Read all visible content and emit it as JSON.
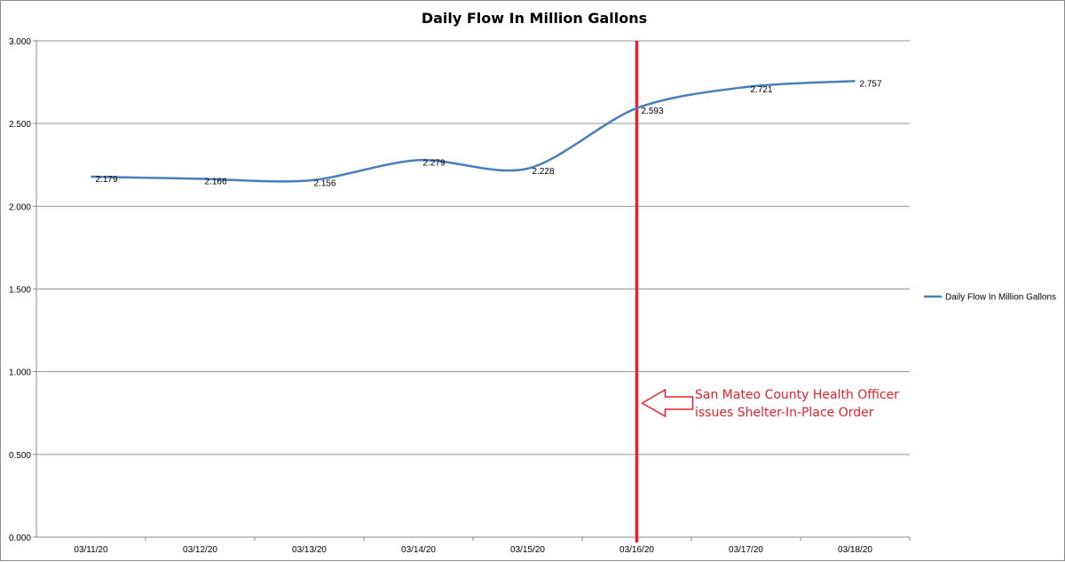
{
  "chart_data": {
    "type": "line",
    "title": "Daily Flow In Million Gallons",
    "xlabel": "",
    "ylabel": "",
    "categories": [
      "03/11/20",
      "03/12/20",
      "03/13/20",
      "03/14/20",
      "03/15/20",
      "03/16/20",
      "03/17/20",
      "03/18/20"
    ],
    "series": [
      {
        "name": "Daily Flow In Million Gallons",
        "values": [
          2.179,
          2.166,
          2.156,
          2.279,
          2.228,
          2.593,
          2.721,
          2.757
        ],
        "data_labels": [
          "2.179",
          "2.166",
          "2.156",
          "2.279",
          "2.228",
          "2.593",
          "2.721",
          "2.757"
        ],
        "color": "#4a7ebb"
      }
    ],
    "ylim": [
      0,
      3
    ],
    "y_ticks": [
      "0.000",
      "0.500",
      "1.000",
      "1.500",
      "2.000",
      "2.500",
      "3.000"
    ],
    "grid": true,
    "legend_position": "right",
    "annotation": {
      "marker_category": "03/16/20",
      "marker_color": "#e8202a",
      "lines": [
        "San Mateo County Health Officer",
        "issues Shelter-In-Place Order"
      ]
    }
  }
}
